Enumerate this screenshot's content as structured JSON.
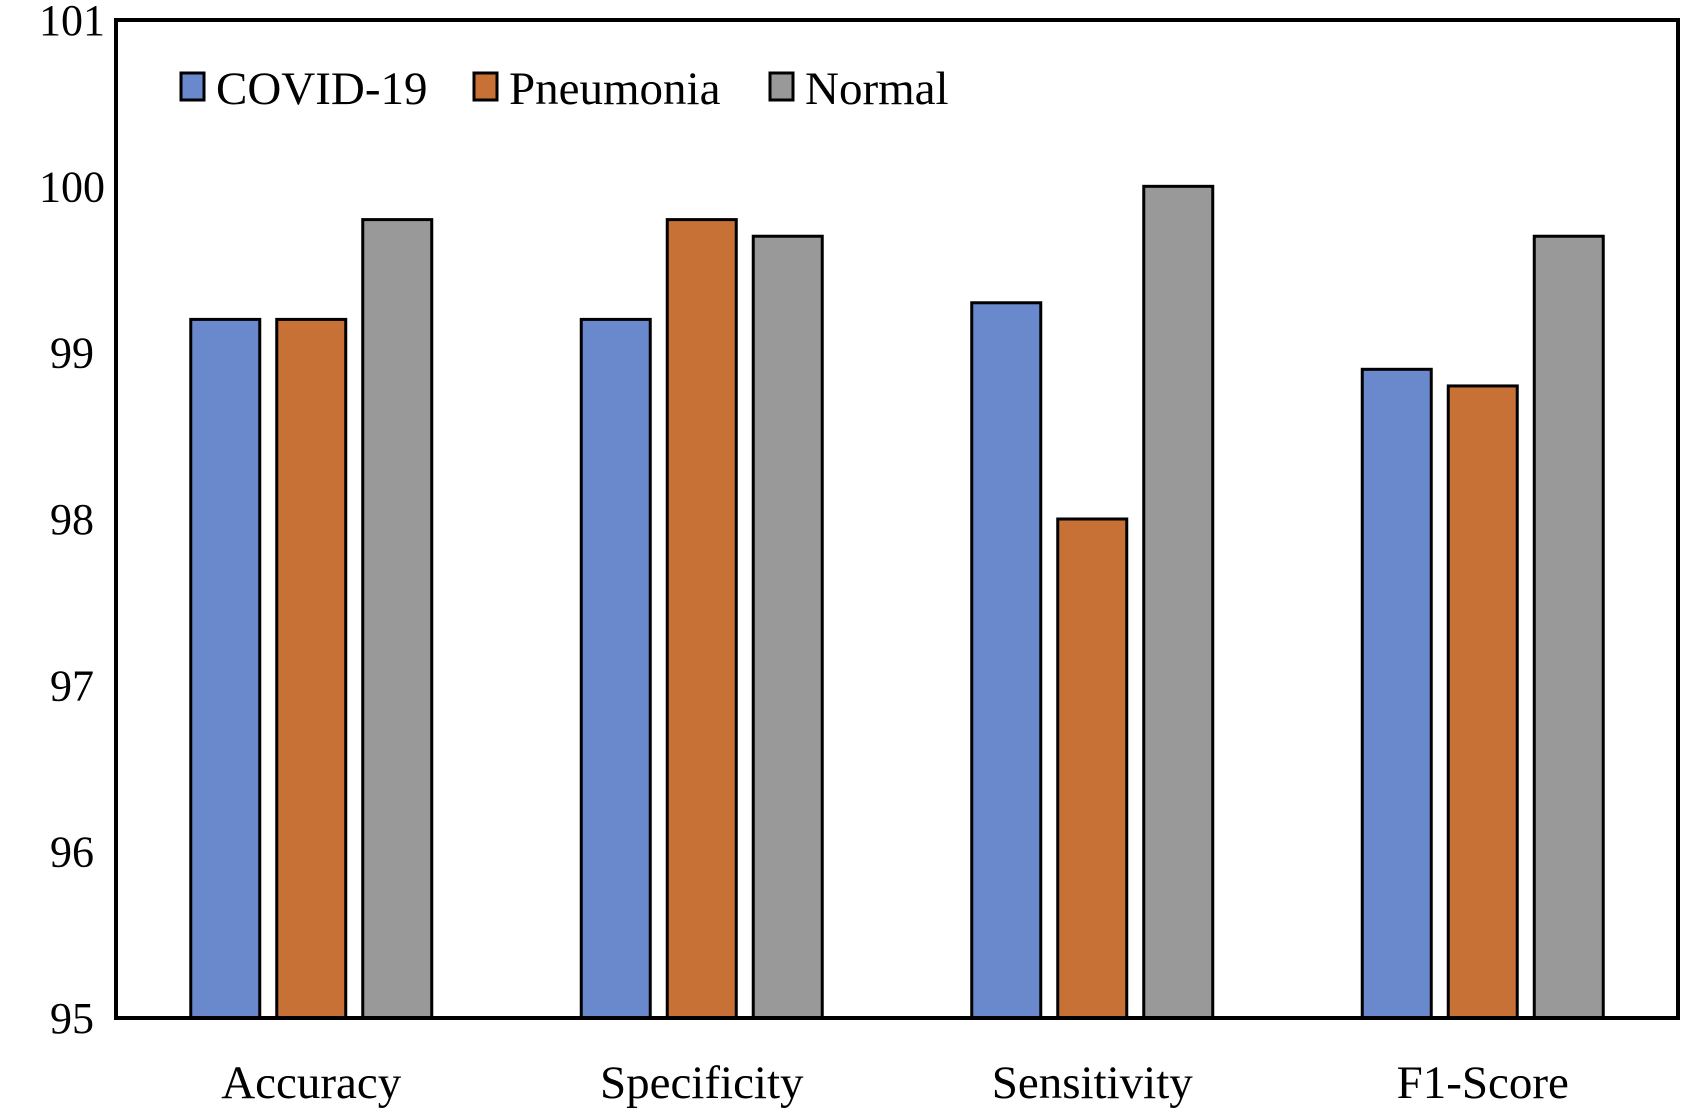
{
  "chart_data": {
    "type": "bar",
    "categories": [
      "Accuracy",
      "Specificity",
      "Sensitivity",
      "F1-Score"
    ],
    "series": [
      {
        "name": "COVID-19",
        "color": "#6a89cc",
        "values": [
          99.2,
          99.2,
          99.3,
          98.9
        ]
      },
      {
        "name": "Pneumonia",
        "color": "#c87137",
        "values": [
          99.2,
          99.8,
          98.0,
          98.8
        ]
      },
      {
        "name": "Normal",
        "color": "#999999",
        "values": [
          99.8,
          99.7,
          100.0,
          99.7
        ]
      }
    ],
    "ylim": [
      95,
      101
    ],
    "yticks": [
      "95",
      "96",
      "97",
      "98",
      "99",
      "100",
      "101"
    ],
    "title": "",
    "xlabel": "",
    "ylabel": "",
    "grid": false,
    "legend_position": "top-left"
  }
}
